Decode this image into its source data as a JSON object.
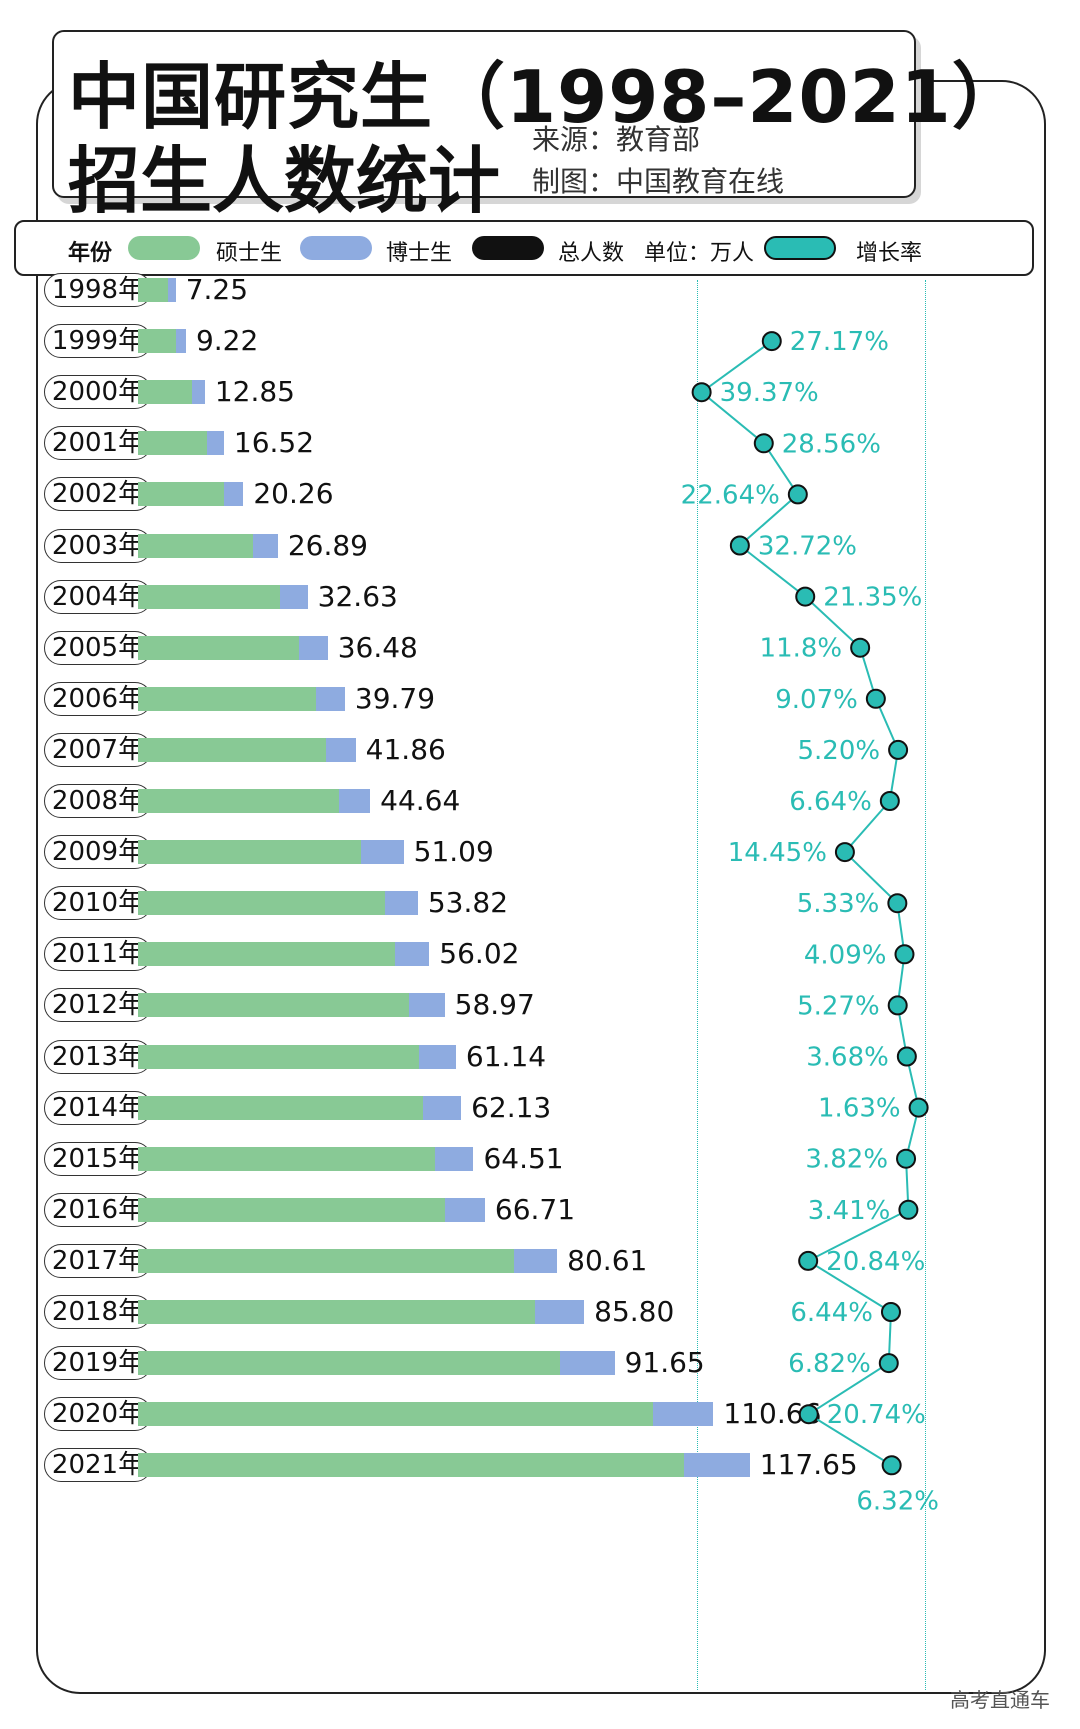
{
  "title": {
    "line1": "中国研究生（1998–2021）",
    "line2": "招生人数统计",
    "source": "来源：教育部",
    "maker": "制图：中国教育在线"
  },
  "legend": {
    "year": "年份",
    "master": "硕士生",
    "doctor": "博士生",
    "total": "总人数",
    "unit": "单位：万人",
    "growth": "增长率"
  },
  "colors": {
    "master": "#88c995",
    "doctor": "#8eabe0",
    "growth": "#2abcb4",
    "total": "#111111"
  },
  "footer": "高考直通车",
  "chart_data": {
    "type": "bar",
    "categories": [
      "1998年",
      "1999年",
      "2000年",
      "2001年",
      "2002年",
      "2003年",
      "2004年",
      "2005年",
      "2006年",
      "2007年",
      "2008年",
      "2009年",
      "2010年",
      "2011年",
      "2012年",
      "2013年",
      "2014年",
      "2015年",
      "2016年",
      "2017年",
      "2018年",
      "2019年",
      "2020年",
      "2021年"
    ],
    "total_labels": [
      "7.25",
      "9.22",
      "12.85",
      "16.52",
      "20.26",
      "26.89",
      "32.63",
      "36.48",
      "39.79",
      "41.86",
      "44.64",
      "51.09",
      "53.82",
      "56.02",
      "58.97",
      "61.14",
      "62.13",
      "64.51",
      "66.71",
      "80.61",
      "85.80",
      "91.65",
      "110.66",
      "117.65"
    ],
    "totals": [
      7.25,
      9.22,
      12.85,
      16.52,
      20.26,
      26.89,
      32.63,
      36.48,
      39.79,
      41.86,
      44.64,
      51.09,
      53.82,
      56.02,
      58.97,
      61.14,
      62.13,
      64.51,
      66.71,
      80.61,
      85.8,
      91.65,
      110.66,
      117.65
    ],
    "series": [
      {
        "name": "硕士生",
        "values": [
          5.75,
          7.23,
          10.34,
          13.26,
          16.46,
          22.02,
          27.3,
          31.0,
          34.2,
          36.06,
          38.68,
          42.91,
          47.44,
          49.46,
          52.13,
          54.09,
          54.87,
          57.06,
          59.04,
          72.22,
          76.25,
          81.13,
          99.05,
          105.07
        ]
      },
      {
        "name": "博士生",
        "values": [
          1.5,
          1.99,
          2.51,
          3.26,
          3.8,
          4.87,
          5.33,
          5.48,
          5.59,
          5.8,
          5.96,
          8.18,
          6.38,
          6.56,
          6.84,
          7.05,
          7.26,
          7.45,
          7.67,
          8.39,
          9.55,
          10.52,
          11.61,
          12.58
        ]
      }
    ],
    "growth": {
      "name": "增长率",
      "categories": [
        "1999年",
        "2000年",
        "2001年",
        "2002年",
        "2003年",
        "2004年",
        "2005年",
        "2006年",
        "2007年",
        "2008年",
        "2009年",
        "2010年",
        "2011年",
        "2012年",
        "2013年",
        "2014年",
        "2015年",
        "2016年",
        "2017年",
        "2018年",
        "2019年",
        "2020年",
        "2021年"
      ],
      "labels": [
        "27.17%",
        "39.37%",
        "28.56%",
        "22.64%",
        "32.72%",
        "21.35%",
        "11.8%",
        "9.07%",
        "5.20%",
        "6.64%",
        "14.45%",
        "5.33%",
        "4.09%",
        "5.27%",
        "3.68%",
        "1.63%",
        "3.82%",
        "3.41%",
        "20.84%",
        "6.44%",
        "6.82%",
        "20.74%",
        "6.32%"
      ],
      "values": [
        27.17,
        39.37,
        28.56,
        22.64,
        32.72,
        21.35,
        11.8,
        9.07,
        5.2,
        6.64,
        14.45,
        5.33,
        4.09,
        5.27,
        3.68,
        1.63,
        3.82,
        3.41,
        20.84,
        6.44,
        6.82,
        20.74,
        6.32
      ],
      "label_side": [
        "right",
        "right",
        "right",
        "left",
        "right",
        "right",
        "left",
        "left",
        "left",
        "left",
        "left",
        "left",
        "left",
        "left",
        "left",
        "left",
        "left",
        "left",
        "right",
        "left",
        "left",
        "right",
        "below"
      ]
    },
    "xlabel": "",
    "ylabel": "",
    "grid": false
  }
}
